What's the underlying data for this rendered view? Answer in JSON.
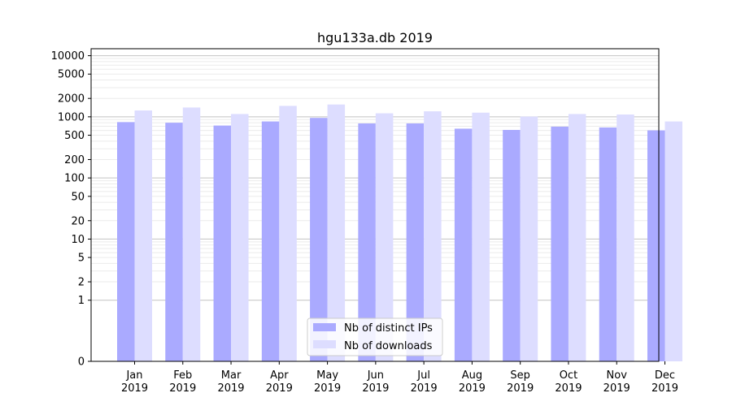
{
  "chart_data": {
    "type": "bar",
    "title": "hgu133a.db 2019",
    "xlabel": "",
    "ylabel": "",
    "yscale": "symlog",
    "ylim": [
      0,
      13000
    ],
    "yticks": [
      0,
      1,
      2,
      5,
      10,
      20,
      50,
      100,
      200,
      500,
      1000,
      2000,
      5000,
      10000
    ],
    "grid": true,
    "legend_position": "bottom-center",
    "categories": [
      [
        "Jan",
        "2019"
      ],
      [
        "Feb",
        "2019"
      ],
      [
        "Mar",
        "2019"
      ],
      [
        "Apr",
        "2019"
      ],
      [
        "May",
        "2019"
      ],
      [
        "Jun",
        "2019"
      ],
      [
        "Jul",
        "2019"
      ],
      [
        "Aug",
        "2019"
      ],
      [
        "Sep",
        "2019"
      ],
      [
        "Oct",
        "2019"
      ],
      [
        "Nov",
        "2019"
      ],
      [
        "Dec",
        "2019"
      ]
    ],
    "series": [
      {
        "name": "Nb of distinct IPs",
        "color": "#aaaaff",
        "values": [
          820,
          800,
          720,
          840,
          960,
          780,
          780,
          640,
          610,
          690,
          670,
          600
        ]
      },
      {
        "name": "Nb of downloads",
        "color": "#ddddff",
        "values": [
          1270,
          1420,
          1110,
          1510,
          1590,
          1140,
          1230,
          1170,
          1010,
          1110,
          1090,
          840
        ]
      }
    ]
  }
}
